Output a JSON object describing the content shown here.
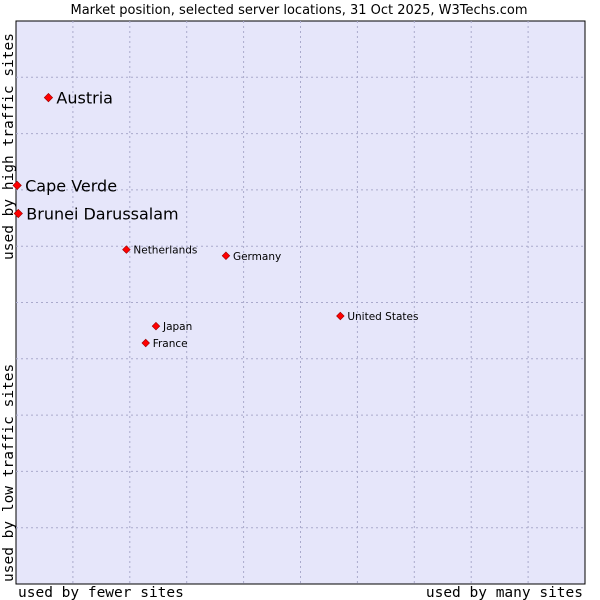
{
  "chart_data": {
    "type": "scatter",
    "title": "Market position, selected server locations, 31 Oct 2025, W3Techs.com",
    "xlabel_left": "used by fewer sites",
    "xlabel_right": "used by many sites",
    "ylabel_bottom": "used by low traffic sites",
    "ylabel_top": "used by high traffic sites",
    "xlim": [
      0,
      100
    ],
    "ylim": [
      0,
      100
    ],
    "grid": true,
    "colors": {
      "plot_bg": "#e6e6fa",
      "grid": "#aaaacc",
      "marker": "#ff0000",
      "marker_edge": "#990000"
    },
    "points": [
      {
        "name": "Austria",
        "x": 5.7,
        "y": 86.4,
        "size": "large"
      },
      {
        "name": "Cape Verde",
        "x": 0.2,
        "y": 70.8,
        "size": "large"
      },
      {
        "name": "Brunei Darussalam",
        "x": 0.4,
        "y": 65.8,
        "size": "large"
      },
      {
        "name": "Netherlands",
        "x": 19.4,
        "y": 59.4,
        "size": "small"
      },
      {
        "name": "Germany",
        "x": 36.9,
        "y": 58.3,
        "size": "small"
      },
      {
        "name": "United States",
        "x": 57.0,
        "y": 47.6,
        "size": "small"
      },
      {
        "name": "Japan",
        "x": 24.6,
        "y": 45.8,
        "size": "small"
      },
      {
        "name": "France",
        "x": 22.8,
        "y": 42.8,
        "size": "small"
      }
    ]
  }
}
